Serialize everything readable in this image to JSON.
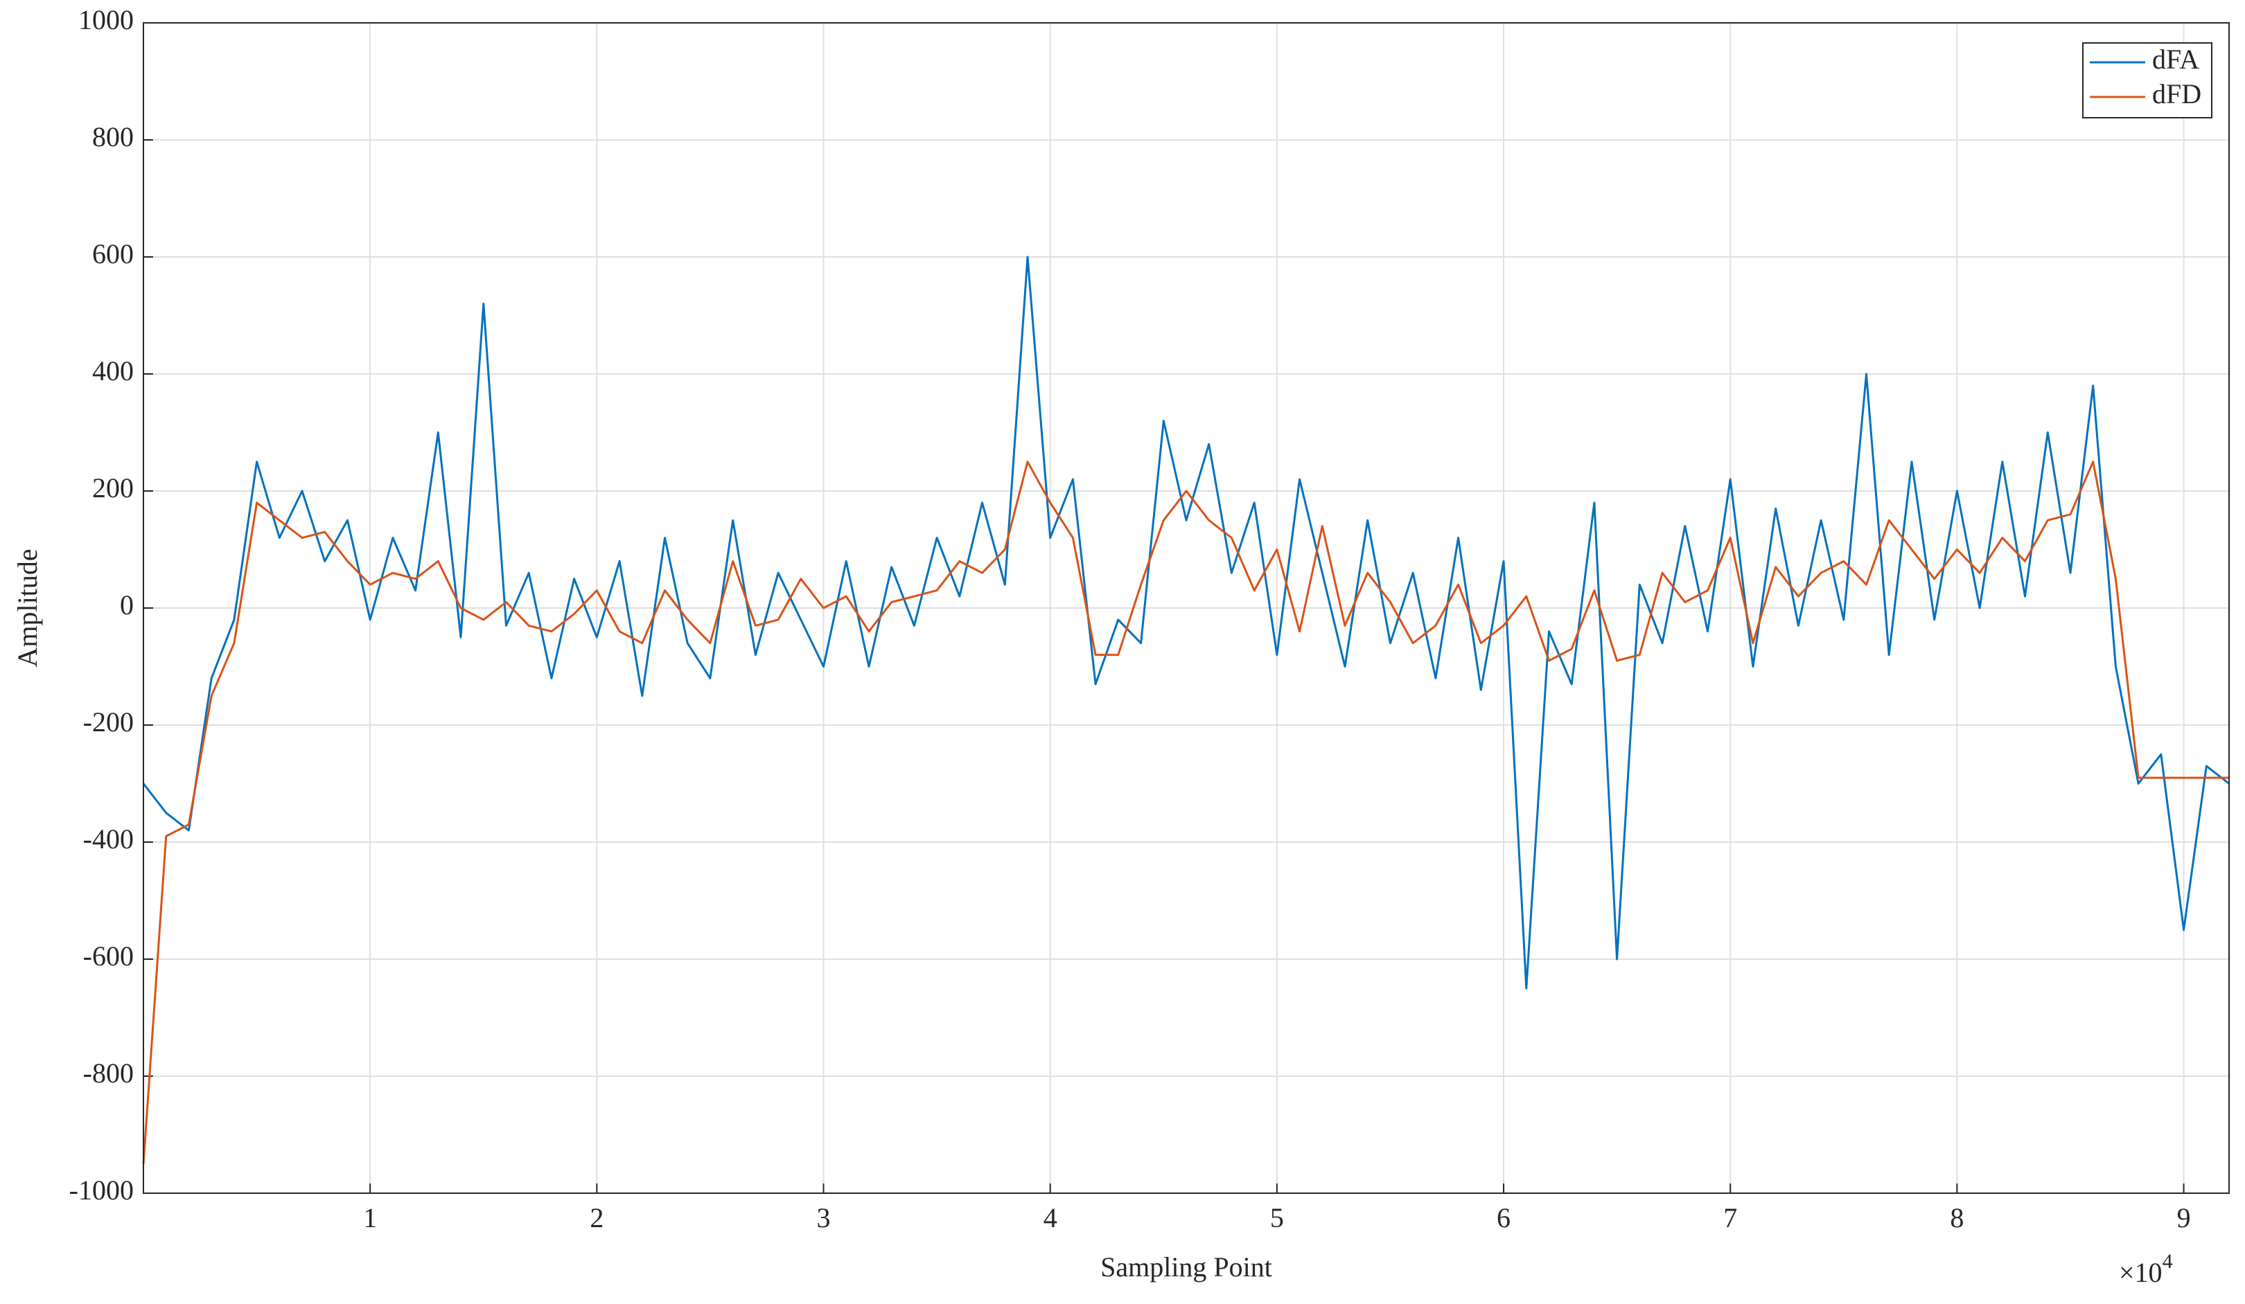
{
  "chart_data": {
    "type": "line",
    "xlabel": "Sampling Point",
    "ylabel": "Amplitude",
    "x_multiplier": "×10",
    "x_exponent": "4",
    "x": [
      0,
      1000,
      2000,
      3000,
      4000,
      5000,
      6000,
      7000,
      8000,
      9000,
      10000,
      11000,
      12000,
      13000,
      14000,
      15000,
      16000,
      17000,
      18000,
      19000,
      20000,
      21000,
      22000,
      23000,
      24000,
      25000,
      26000,
      27000,
      28000,
      29000,
      30000,
      31000,
      32000,
      33000,
      34000,
      35000,
      36000,
      37000,
      38000,
      39000,
      40000,
      41000,
      42000,
      43000,
      44000,
      45000,
      46000,
      47000,
      48000,
      49000,
      50000,
      51000,
      52000,
      53000,
      54000,
      55000,
      56000,
      57000,
      58000,
      59000,
      60000,
      61000,
      62000,
      63000,
      64000,
      65000,
      66000,
      67000,
      68000,
      69000,
      70000,
      71000,
      72000,
      73000,
      74000,
      75000,
      76000,
      77000,
      78000,
      79000,
      80000,
      81000,
      82000,
      83000,
      84000,
      85000,
      86000,
      87000,
      88000,
      89000,
      90000,
      91000,
      92000
    ],
    "series": [
      {
        "name": "dFA",
        "color": "#0072BD",
        "values": [
          -300,
          -350,
          -380,
          -120,
          -20,
          250,
          120,
          200,
          80,
          150,
          -20,
          120,
          30,
          300,
          -50,
          520,
          -30,
          60,
          -120,
          50,
          -50,
          80,
          -150,
          120,
          -60,
          -120,
          150,
          -80,
          60,
          -20,
          -100,
          80,
          -100,
          70,
          -30,
          120,
          20,
          180,
          40,
          600,
          120,
          220,
          -130,
          -20,
          -60,
          320,
          150,
          280,
          60,
          180,
          -80,
          220,
          60,
          -100,
          150,
          -60,
          60,
          -120,
          120,
          -140,
          80,
          -650,
          -40,
          -130,
          180,
          -600,
          40,
          -60,
          140,
          -40,
          220,
          -100,
          170,
          -30,
          150,
          -20,
          400,
          -80,
          250,
          -20,
          200,
          0,
          250,
          20,
          300,
          60,
          380,
          -100,
          -300,
          -250,
          -550,
          -270,
          -300
        ]
      },
      {
        "name": "dFD",
        "color": "#D95319",
        "values": [
          -950,
          -390,
          -370,
          -150,
          -60,
          180,
          150,
          120,
          130,
          80,
          40,
          60,
          50,
          80,
          0,
          -20,
          10,
          -30,
          -40,
          -10,
          30,
          -40,
          -60,
          30,
          -20,
          -60,
          80,
          -30,
          -20,
          50,
          0,
          20,
          -40,
          10,
          20,
          30,
          80,
          60,
          100,
          250,
          180,
          120,
          -80,
          -80,
          40,
          150,
          200,
          150,
          120,
          30,
          100,
          -40,
          140,
          -30,
          60,
          10,
          -60,
          -30,
          40,
          -60,
          -30,
          20,
          -90,
          -70,
          30,
          -90,
          -80,
          60,
          10,
          30,
          120,
          -60,
          70,
          20,
          60,
          80,
          40,
          150,
          100,
          50,
          100,
          60,
          120,
          80,
          150,
          160,
          250,
          50,
          -290,
          -290,
          -290,
          -290,
          -290
        ]
      }
    ],
    "xlim": [
      0,
      92000
    ],
    "ylim": [
      -1000,
      1000
    ],
    "xticks": [
      {
        "value": 10000,
        "label": "1"
      },
      {
        "value": 20000,
        "label": "2"
      },
      {
        "value": 30000,
        "label": "3"
      },
      {
        "value": 40000,
        "label": "4"
      },
      {
        "value": 50000,
        "label": "5"
      },
      {
        "value": 60000,
        "label": "6"
      },
      {
        "value": 70000,
        "label": "7"
      },
      {
        "value": 80000,
        "label": "8"
      },
      {
        "value": 90000,
        "label": "9"
      }
    ],
    "yticks": [
      -1000,
      -800,
      -600,
      -400,
      -200,
      0,
      200,
      400,
      600,
      800,
      1000
    ],
    "grid": true,
    "legend": "northeast"
  }
}
